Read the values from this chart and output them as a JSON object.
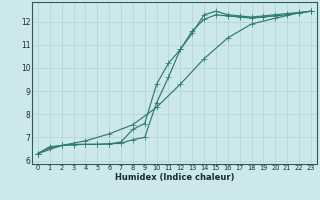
{
  "bg_color": "#cde8ec",
  "line_color": "#2d7a70",
  "grid_color": "#b8d8dc",
  "xlabel": "Humidex (Indice chaleur)",
  "ylabel_ticks": [
    6,
    7,
    8,
    9,
    10,
    11,
    12
  ],
  "xlim": [
    -0.5,
    23.5
  ],
  "ylim": [
    5.85,
    12.85
  ],
  "xticks": [
    0,
    1,
    2,
    3,
    4,
    5,
    6,
    7,
    8,
    9,
    10,
    11,
    12,
    13,
    14,
    15,
    16,
    17,
    18,
    19,
    20,
    21,
    22,
    23
  ],
  "series1_x": [
    0,
    1,
    2,
    3,
    4,
    5,
    6,
    7,
    8,
    9,
    10,
    11,
    12,
    13,
    14,
    15,
    16,
    17,
    18,
    19,
    20,
    21,
    22,
    23
  ],
  "series1_y": [
    6.3,
    6.6,
    6.65,
    6.7,
    6.7,
    6.7,
    6.72,
    6.75,
    6.9,
    7.0,
    8.5,
    9.6,
    10.8,
    11.5,
    12.3,
    12.45,
    12.3,
    12.25,
    12.2,
    12.25,
    12.3,
    12.35,
    12.4,
    12.45
  ],
  "series2_x": [
    0,
    1,
    2,
    3,
    4,
    5,
    6,
    7,
    8,
    9,
    10,
    11,
    12,
    13,
    14,
    15,
    16,
    17,
    18,
    19,
    20,
    21,
    22,
    23
  ],
  "series2_y": [
    6.3,
    6.55,
    6.65,
    6.68,
    6.7,
    6.7,
    6.72,
    6.8,
    7.35,
    7.6,
    9.3,
    10.2,
    10.8,
    11.6,
    12.1,
    12.3,
    12.25,
    12.2,
    12.15,
    12.2,
    12.25,
    12.3,
    12.38,
    12.45
  ],
  "series3_x": [
    0,
    2,
    4,
    6,
    8,
    10,
    12,
    14,
    16,
    18,
    20,
    22,
    23
  ],
  "series3_y": [
    6.3,
    6.65,
    6.85,
    7.15,
    7.55,
    8.3,
    9.3,
    10.4,
    11.3,
    11.9,
    12.15,
    12.38,
    12.45
  ]
}
